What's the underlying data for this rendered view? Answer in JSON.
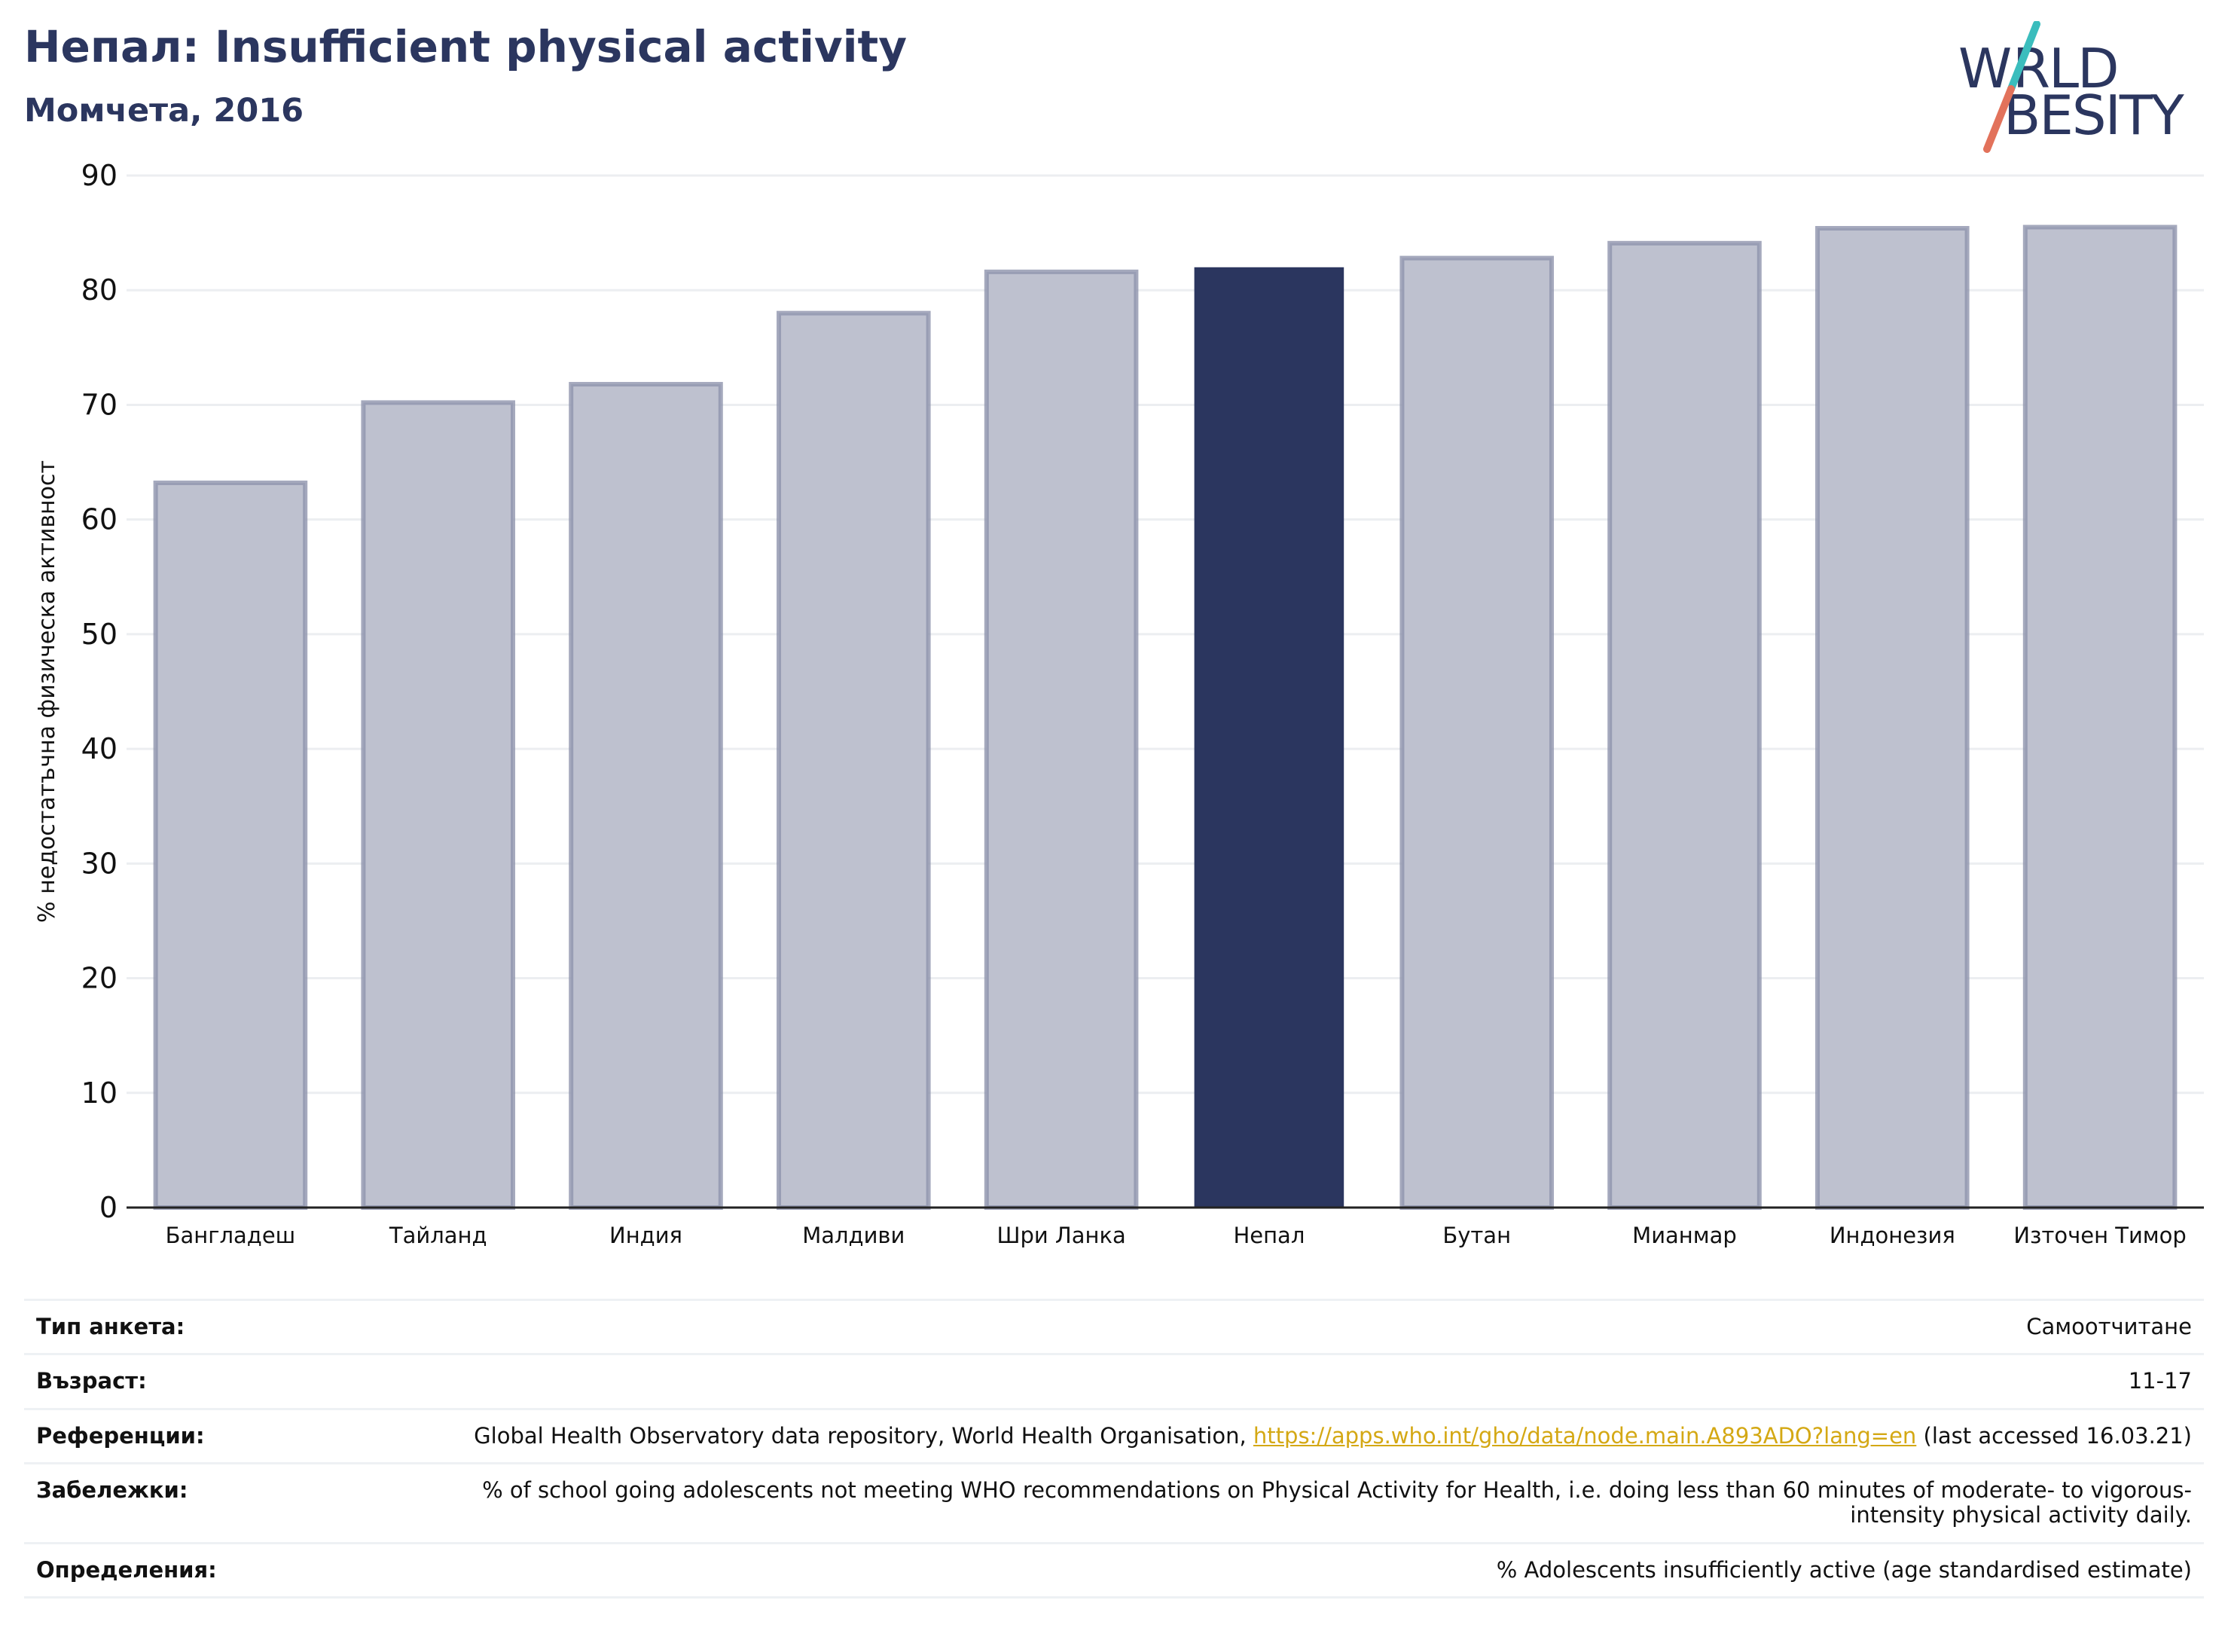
{
  "header": {
    "title": "Непал: Insufficient physical activity",
    "subtitle": "Момчета, 2016"
  },
  "logo": {
    "text": "WORLD OBESITY",
    "colors": {
      "text": "#2b365f",
      "slash_top": "#3bbdbd",
      "slash_bottom": "#e2725b"
    }
  },
  "colors": {
    "highlight": "#2b365f",
    "bar_fill": "#bec1cf",
    "bar_stroke": "#8e93ad",
    "grid": "#eceef1",
    "axis": "#222222"
  },
  "chart_data": {
    "type": "bar",
    "categories": [
      "Бангладеш",
      "Тайланд",
      "Индия",
      "Малдиви",
      "Шри Ланка",
      "Непал",
      "Бутан",
      "Мианмар",
      "Индонезия",
      "Източен Тимор"
    ],
    "values": [
      63.2,
      70.2,
      71.8,
      78.0,
      81.6,
      82.0,
      82.8,
      84.1,
      85.4,
      85.5
    ],
    "highlight": "Непал",
    "title": "Непал: Insufficient physical activity",
    "subtitle": "Момчета, 2016",
    "xlabel": "",
    "ylabel": "% недостатъчна физическа активност",
    "ylim": [
      0,
      90
    ],
    "yticks": [
      0,
      10,
      20,
      30,
      40,
      50,
      60,
      70,
      80,
      90
    ],
    "grid": true,
    "legend": "none"
  },
  "info": {
    "rows": [
      {
        "key": "Тип анкета:",
        "value": "Самоотчитане"
      },
      {
        "key": "Възраст:",
        "value": "11-17"
      },
      {
        "key": "Референции:",
        "value_pre": "Global Health Observatory data repository, World Health Organisation, ",
        "link": "https://apps.who.int/gho/data/node.main.A893ADO?lang=en",
        "value_post": " (last accessed 16.03.21)"
      },
      {
        "key": "Забележки:",
        "value": "% of school going adolescents not meeting WHO recommendations on Physical Activity for Health, i.e. doing less than 60 minutes of moderate- to vigorous-intensity physical activity daily."
      },
      {
        "key": "Определения:",
        "value": "% Adolescents insufficiently active (age standardised estimate)"
      }
    ]
  }
}
